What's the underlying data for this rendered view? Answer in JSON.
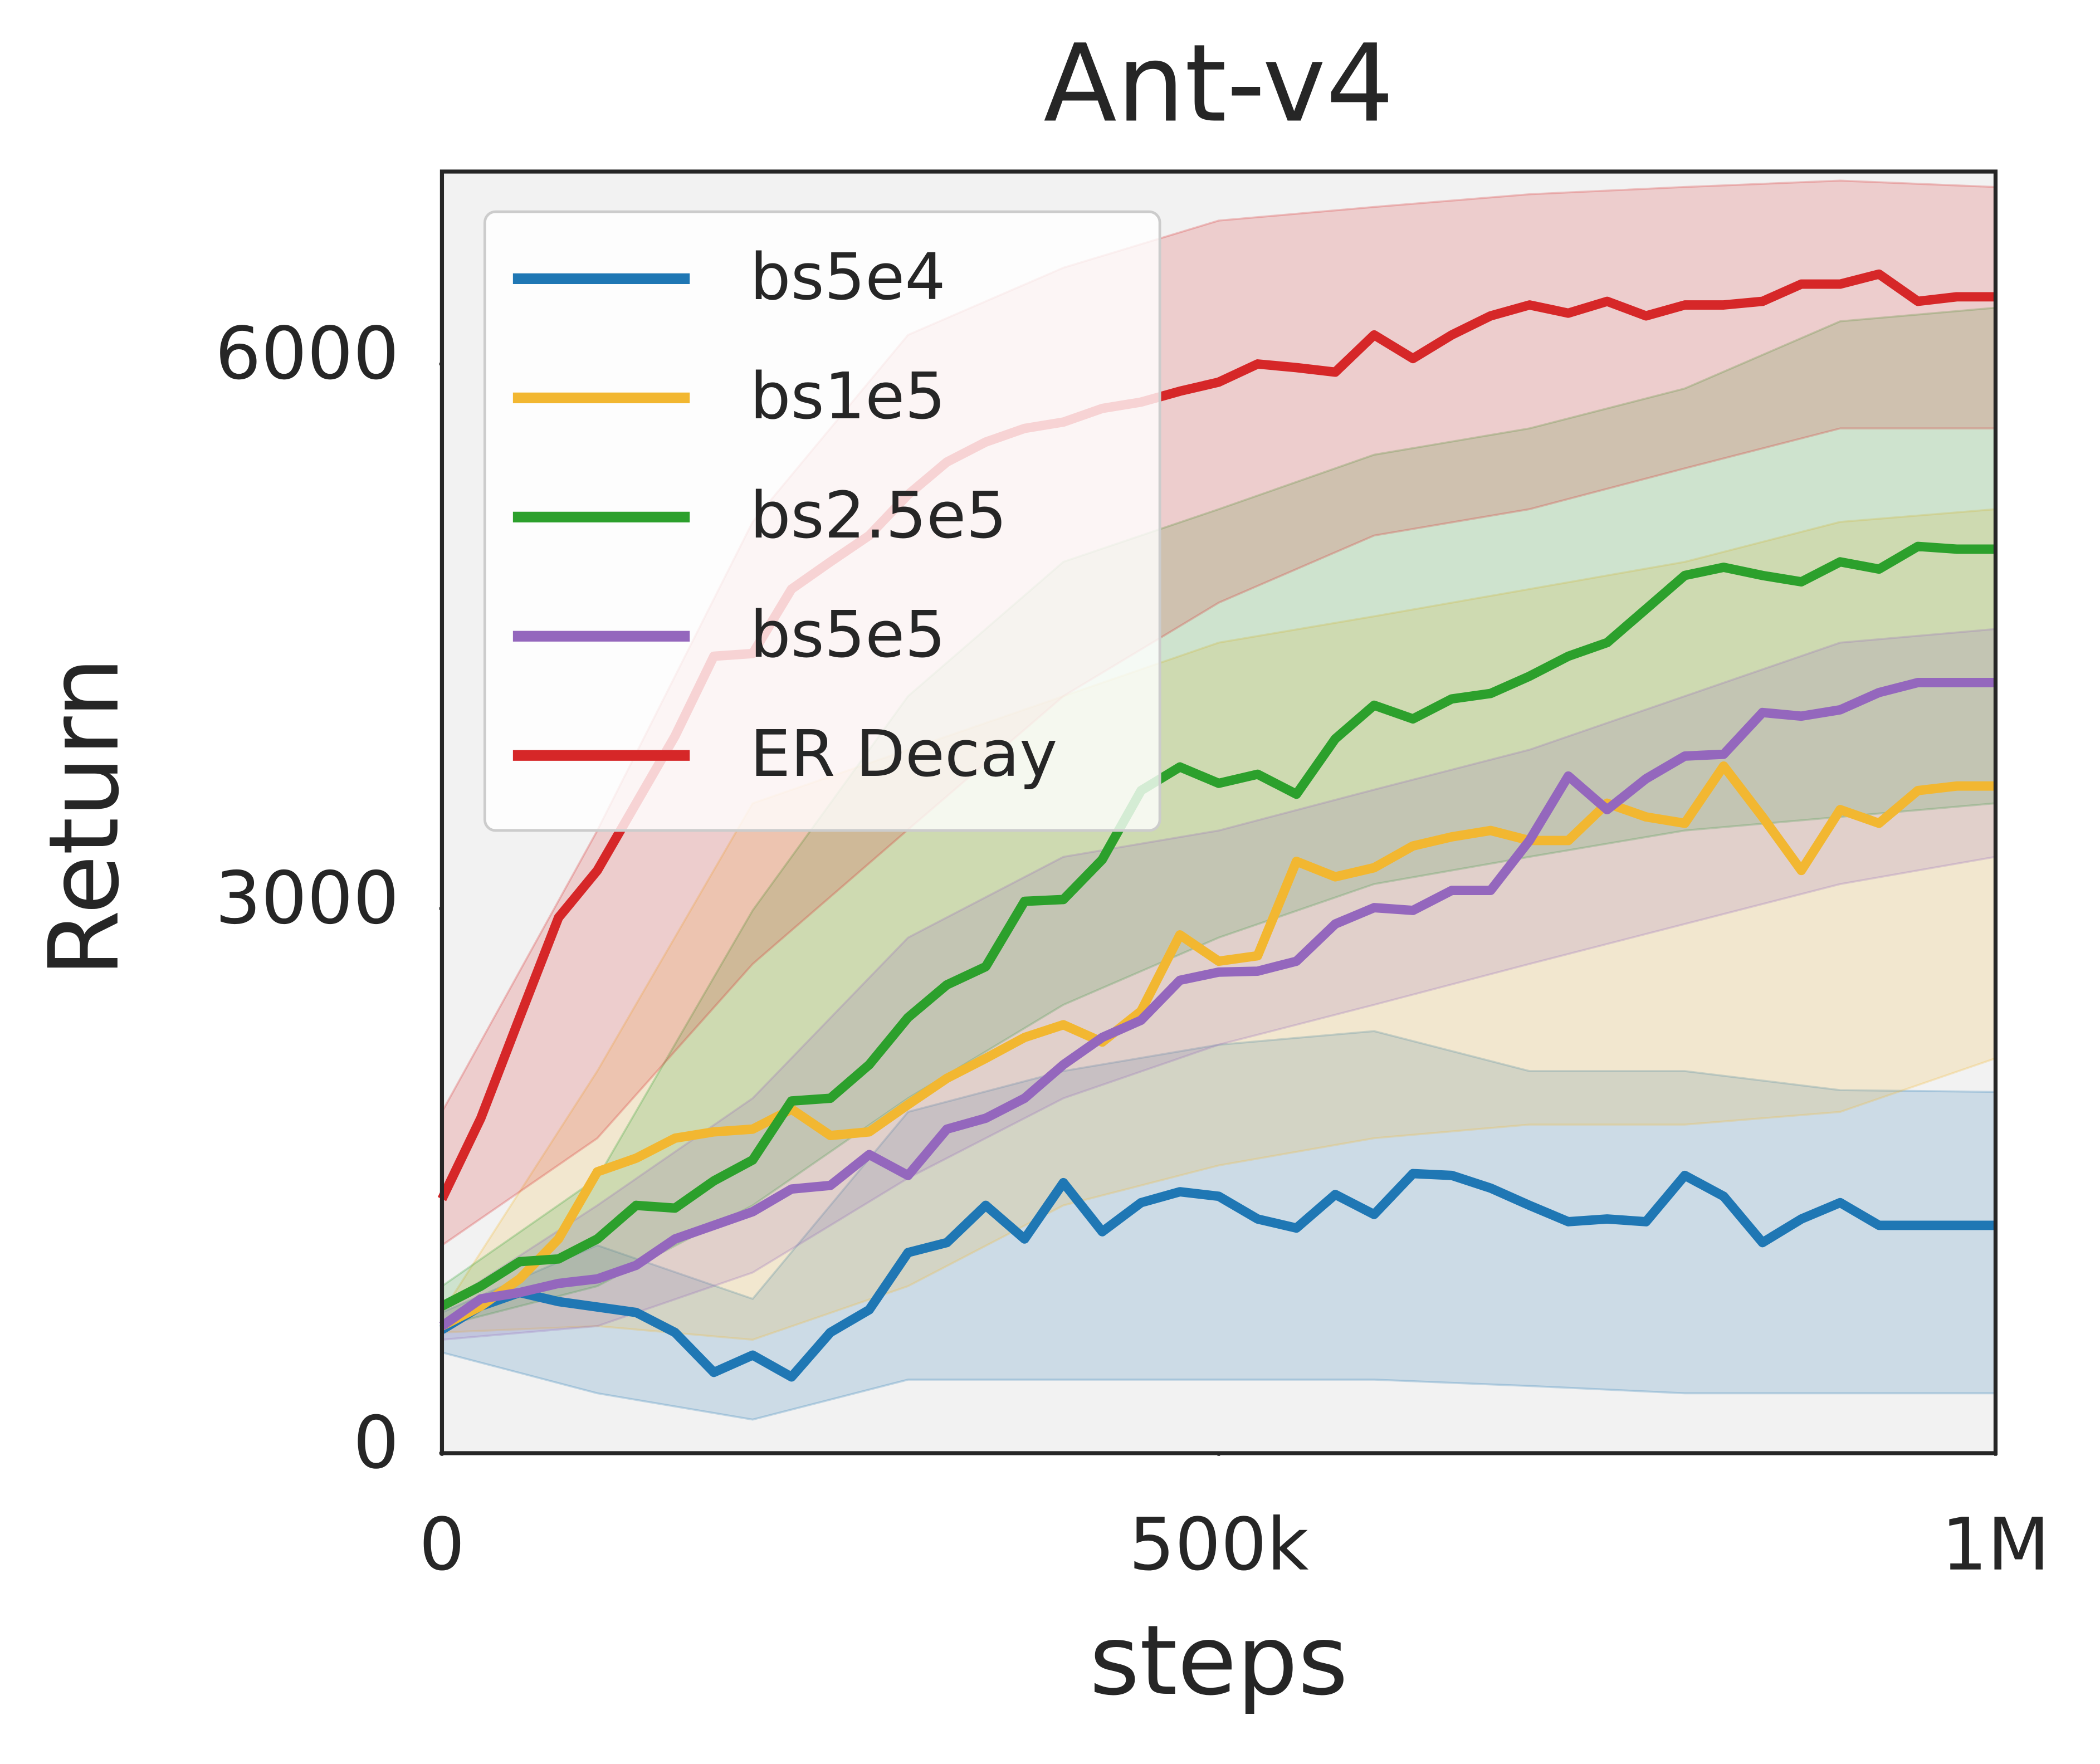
{
  "chart_data": {
    "type": "line",
    "title": "Ant-v4",
    "x_label": "steps",
    "y_label": "Return",
    "xlim": [
      0,
      1000000
    ],
    "ylim": [
      0,
      7060
    ],
    "xticks": [
      0,
      {
        "value": 500000,
        "label": "500k"
      },
      {
        "value": 1000000,
        "label": "1M"
      }
    ],
    "yticks": [
      0,
      3000,
      6000
    ],
    "grid": false,
    "legend_loc": "upper left",
    "x": [
      0,
      25000,
      50000,
      75000,
      100000,
      125000,
      150000,
      175000,
      200000,
      225000,
      250000,
      275000,
      300000,
      325000,
      350000,
      375000,
      400000,
      425000,
      450000,
      475000,
      500000,
      525000,
      550000,
      575000,
      600000,
      625000,
      650000,
      675000,
      700000,
      725000,
      750000,
      775000,
      800000,
      825000,
      850000,
      875000,
      900000,
      925000,
      950000,
      975000,
      1000000
    ],
    "band_x": [
      0,
      100000,
      200000,
      300000,
      400000,
      500000,
      600000,
      700000,
      800000,
      900000,
      1000000
    ],
    "series": [
      {
        "name": "bs5e4",
        "color": "#1f77b4",
        "values": [
          680,
          810,
          885,
          835,
          805,
          775,
          665,
          445,
          540,
          420,
          665,
          790,
          1105,
          1160,
          1365,
          1180,
          1490,
          1220,
          1380,
          1440,
          1415,
          1290,
          1240,
          1425,
          1315,
          1540,
          1530,
          1460,
          1365,
          1275,
          1290,
          1275,
          1530,
          1415,
          1160,
          1290,
          1380,
          1255,
          1255,
          1255,
          1255
        ],
        "lower": [
          555,
          330,
          185,
          405,
          405,
          405,
          405,
          370,
          330,
          330,
          330
        ],
        "upper": [
          775,
          1145,
          850,
          1880,
          2105,
          2250,
          2325,
          2105,
          2105,
          2000,
          1990
        ]
      },
      {
        "name": "bs1e5",
        "color": "#f2b731",
        "values": [
          700,
          810,
          960,
          1180,
          1550,
          1625,
          1735,
          1770,
          1785,
          1895,
          1750,
          1770,
          1920,
          2065,
          2175,
          2290,
          2360,
          2265,
          2435,
          2855,
          2710,
          2740,
          3260,
          3175,
          3225,
          3345,
          3395,
          3430,
          3375,
          3375,
          3580,
          3505,
          3470,
          3785,
          3505,
          3210,
          3545,
          3470,
          3650,
          3675,
          3675
        ],
        "lower": [
          665,
          700,
          625,
          920,
          1365,
          1585,
          1735,
          1810,
          1810,
          1880,
          2175
        ],
        "upper": [
          775,
          2105,
          3580,
          3875,
          4170,
          4465,
          4610,
          4760,
          4910,
          5130,
          5200
        ]
      },
      {
        "name": "bs2.5e5",
        "color": "#2ca02c",
        "values": [
          810,
          920,
          1055,
          1070,
          1180,
          1365,
          1350,
          1500,
          1615,
          1940,
          1955,
          2140,
          2400,
          2580,
          2680,
          3040,
          3050,
          3270,
          3650,
          3780,
          3690,
          3740,
          3630,
          3935,
          4120,
          4045,
          4155,
          4185,
          4280,
          4390,
          4465,
          4650,
          4835,
          4880,
          4835,
          4800,
          4910,
          4870,
          4995,
          4980,
          4980
        ],
        "lower": [
          700,
          920,
          1365,
          1955,
          2470,
          2840,
          3135,
          3285,
          3430,
          3505,
          3580
        ],
        "upper": [
          920,
          1515,
          2990,
          4170,
          4910,
          5200,
          5500,
          5645,
          5865,
          6235,
          6310
        ]
      },
      {
        "name": "bs5e5",
        "color": "#9467bd",
        "values": [
          700,
          850,
          885,
          935,
          960,
          1035,
          1180,
          1255,
          1330,
          1455,
          1475,
          1645,
          1530,
          1785,
          1845,
          1955,
          2140,
          2290,
          2385,
          2605,
          2650,
          2655,
          2710,
          2915,
          3005,
          2990,
          3100,
          3100,
          3375,
          3730,
          3545,
          3715,
          3840,
          3850,
          4080,
          4060,
          4095,
          4190,
          4245,
          4245,
          4245
        ],
        "lower": [
          625,
          700,
          995,
          1515,
          1955,
          2250,
          2470,
          2695,
          2915,
          3135,
          3285
        ],
        "upper": [
          810,
          1365,
          1955,
          2840,
          3285,
          3430,
          3655,
          3875,
          4170,
          4465,
          4540
        ]
      },
      {
        "name": "ER Decay",
        "color": "#d62728",
        "values": [
          1400,
          1845,
          2400,
          2950,
          3210,
          3580,
          3950,
          4390,
          4405,
          4760,
          4910,
          5055,
          5280,
          5460,
          5570,
          5645,
          5680,
          5755,
          5790,
          5850,
          5900,
          6000,
          5980,
          5955,
          6160,
          6030,
          6160,
          6265,
          6325,
          6280,
          6345,
          6265,
          6325,
          6325,
          6345,
          6440,
          6440,
          6495,
          6345,
          6370,
          6370
        ],
        "lower": [
          1145,
          1735,
          2695,
          3435,
          4170,
          4685,
          5055,
          5200,
          5425,
          5645,
          5645
        ],
        "upper": [
          1880,
          3430,
          5130,
          6160,
          6530,
          6790,
          6865,
          6935,
          6975,
          7010,
          6975
        ]
      }
    ]
  }
}
